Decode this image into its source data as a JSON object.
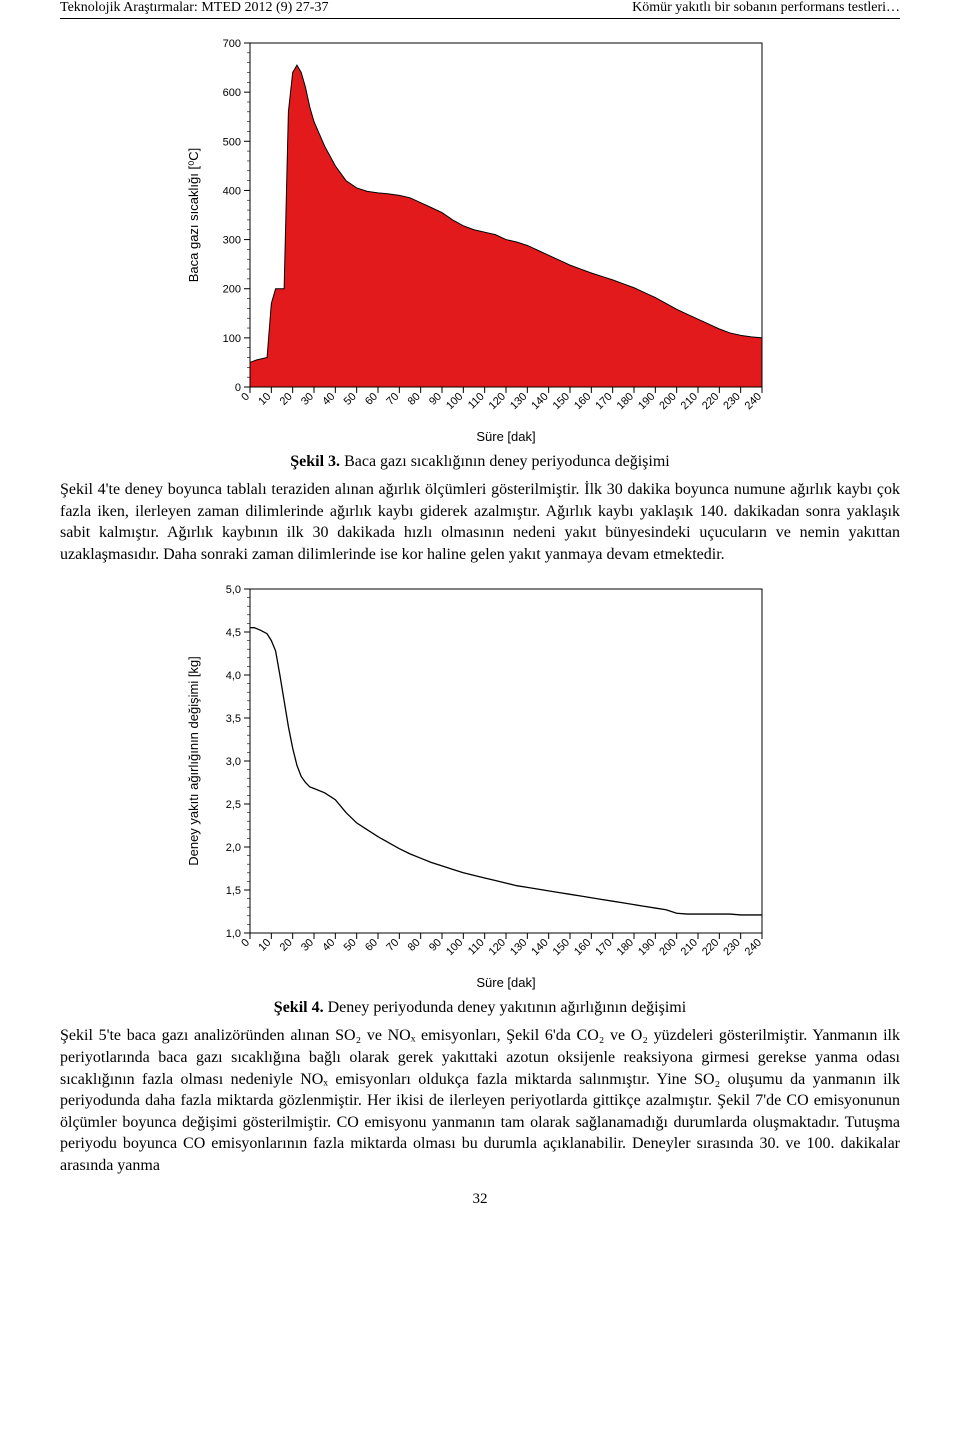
{
  "header": {
    "left": "Teknolojik Araştırmalar: MTED 2012 (9) 27-37",
    "right": "Kömür yakıtlı bir sobanın performans testleri…"
  },
  "paragraph1": "Şekil 4'te deney boyunca tablalı teraziden alınan ağırlık ölçümleri gösterilmiştir. İlk 30 dakika boyunca numune ağırlık kaybı çok fazla iken, ilerleyen zaman dilimlerinde ağırlık kaybı giderek azalmıştır. Ağırlık kaybı yaklaşık 140. dakikadan sonra yaklaşık sabit kalmıştır. Ağırlık kaybının ilk 30 dakikada hızlı olmasının nedeni yakıt bünyesindeki uçucuların ve nemin yakıttan uzaklaşmasıdır. Daha sonraki zaman dilimlerinde ise kor haline gelen yakıt yanmaya devam etmektedir.",
  "paragraph2": "Şekil 5'te baca gazı analizöründen alınan SO₂ ve NOₓ emisyonları, Şekil 6'da CO₂ ve O₂ yüzdeleri gösterilmiştir. Yanmanın ilk periyotlarında baca gazı sıcaklığına bağlı olarak gerek yakıttaki azotun oksijenle reaksiyona girmesi gerekse yanma odası sıcaklığının fazla olması nedeniyle NOₓ emisyonları oldukça fazla miktarda salınmıştır. Yine SO₂ oluşumu da yanmanın ilk periyodunda daha fazla miktarda gözlenmiştir. Her ikisi de ilerleyen periyotlarda gittikçe azalmıştır. Şekil 7'de CO emisyonunun ölçümler boyunca değişimi gösterilmiştir. CO emisyonu yanmanın tam olarak sağlanamadığı durumlarda oluşmaktadır. Tutuşma periyodu boyunca CO emisyonlarının fazla miktarda olması bu durumla açıklanabilir. Deneyler sırasında 30. ve 100. dakikalar arasında yanma",
  "pageNumber": "32",
  "chart1": {
    "type": "area",
    "caption_bold": "Şekil 3.",
    "caption_rest": " Baca gazı sıcaklığının deney periyodunca değişimi",
    "xlabel": "Süre [dak]",
    "ylabel": "Baca gazı sıcaklığı [⁰C]",
    "xlim": [
      0,
      240
    ],
    "ylim": [
      0,
      700
    ],
    "xticks_major": [
      0,
      10,
      20,
      30,
      40,
      50,
      60,
      70,
      80,
      90,
      100,
      110,
      120,
      130,
      140,
      150,
      160,
      170,
      180,
      190,
      200,
      210,
      220,
      230,
      240
    ],
    "yticks_major": [
      0,
      100,
      200,
      300,
      400,
      500,
      600,
      700
    ],
    "fill_color": "#e31a1c",
    "stroke_color": "#000000",
    "background_color": "#ffffff",
    "label_fontsize": 13,
    "tick_fontsize": 11,
    "series": [
      [
        0,
        50
      ],
      [
        3,
        55
      ],
      [
        6,
        58
      ],
      [
        8,
        60
      ],
      [
        10,
        170
      ],
      [
        12,
        200
      ],
      [
        14,
        200
      ],
      [
        16,
        200
      ],
      [
        18,
        560
      ],
      [
        20,
        640
      ],
      [
        22,
        655
      ],
      [
        24,
        640
      ],
      [
        26,
        610
      ],
      [
        28,
        570
      ],
      [
        30,
        540
      ],
      [
        35,
        490
      ],
      [
        40,
        450
      ],
      [
        45,
        420
      ],
      [
        50,
        405
      ],
      [
        55,
        398
      ],
      [
        60,
        395
      ],
      [
        65,
        393
      ],
      [
        70,
        390
      ],
      [
        75,
        385
      ],
      [
        80,
        375
      ],
      [
        85,
        365
      ],
      [
        90,
        355
      ],
      [
        95,
        340
      ],
      [
        100,
        328
      ],
      [
        105,
        320
      ],
      [
        110,
        315
      ],
      [
        115,
        310
      ],
      [
        120,
        300
      ],
      [
        125,
        295
      ],
      [
        130,
        288
      ],
      [
        135,
        278
      ],
      [
        140,
        268
      ],
      [
        145,
        258
      ],
      [
        150,
        248
      ],
      [
        155,
        240
      ],
      [
        160,
        232
      ],
      [
        165,
        225
      ],
      [
        170,
        218
      ],
      [
        175,
        210
      ],
      [
        180,
        202
      ],
      [
        185,
        192
      ],
      [
        190,
        182
      ],
      [
        195,
        170
      ],
      [
        200,
        158
      ],
      [
        205,
        148
      ],
      [
        210,
        138
      ],
      [
        215,
        128
      ],
      [
        220,
        118
      ],
      [
        225,
        110
      ],
      [
        230,
        105
      ],
      [
        235,
        102
      ],
      [
        240,
        100
      ]
    ]
  },
  "chart2": {
    "type": "line",
    "caption_bold": "Şekil 4.",
    "caption_rest": " Deney periyodunda deney yakıtının ağırlığının değişimi",
    "xlabel": "Süre [dak]",
    "ylabel": "Deney yakıtı ağırlığının değişimi [kg]",
    "xlim": [
      0,
      240
    ],
    "ylim": [
      1.0,
      5.0
    ],
    "xticks_major": [
      0,
      10,
      20,
      30,
      40,
      50,
      60,
      70,
      80,
      90,
      100,
      110,
      120,
      130,
      140,
      150,
      160,
      170,
      180,
      190,
      200,
      210,
      220,
      230,
      240
    ],
    "yticks_major": [
      1.0,
      1.5,
      2.0,
      2.5,
      3.0,
      3.5,
      4.0,
      4.5,
      5.0
    ],
    "stroke_color": "#000000",
    "background_color": "#ffffff",
    "label_fontsize": 13,
    "tick_fontsize": 11,
    "series": [
      [
        0,
        4.55
      ],
      [
        2,
        4.55
      ],
      [
        5,
        4.52
      ],
      [
        8,
        4.48
      ],
      [
        10,
        4.4
      ],
      [
        12,
        4.28
      ],
      [
        14,
        4.0
      ],
      [
        16,
        3.7
      ],
      [
        18,
        3.4
      ],
      [
        20,
        3.15
      ],
      [
        22,
        2.95
      ],
      [
        24,
        2.82
      ],
      [
        26,
        2.75
      ],
      [
        28,
        2.7
      ],
      [
        30,
        2.68
      ],
      [
        35,
        2.63
      ],
      [
        40,
        2.55
      ],
      [
        45,
        2.4
      ],
      [
        50,
        2.28
      ],
      [
        55,
        2.2
      ],
      [
        60,
        2.12
      ],
      [
        65,
        2.05
      ],
      [
        70,
        1.98
      ],
      [
        75,
        1.92
      ],
      [
        80,
        1.87
      ],
      [
        85,
        1.82
      ],
      [
        90,
        1.78
      ],
      [
        95,
        1.74
      ],
      [
        100,
        1.7
      ],
      [
        105,
        1.67
      ],
      [
        110,
        1.64
      ],
      [
        115,
        1.61
      ],
      [
        120,
        1.58
      ],
      [
        125,
        1.55
      ],
      [
        130,
        1.53
      ],
      [
        135,
        1.51
      ],
      [
        140,
        1.49
      ],
      [
        145,
        1.47
      ],
      [
        150,
        1.45
      ],
      [
        155,
        1.43
      ],
      [
        160,
        1.41
      ],
      [
        165,
        1.39
      ],
      [
        170,
        1.37
      ],
      [
        175,
        1.35
      ],
      [
        180,
        1.33
      ],
      [
        185,
        1.31
      ],
      [
        190,
        1.29
      ],
      [
        195,
        1.27
      ],
      [
        200,
        1.23
      ],
      [
        205,
        1.22
      ],
      [
        210,
        1.22
      ],
      [
        215,
        1.22
      ],
      [
        220,
        1.22
      ],
      [
        225,
        1.22
      ],
      [
        230,
        1.21
      ],
      [
        235,
        1.21
      ],
      [
        240,
        1.21
      ]
    ]
  }
}
